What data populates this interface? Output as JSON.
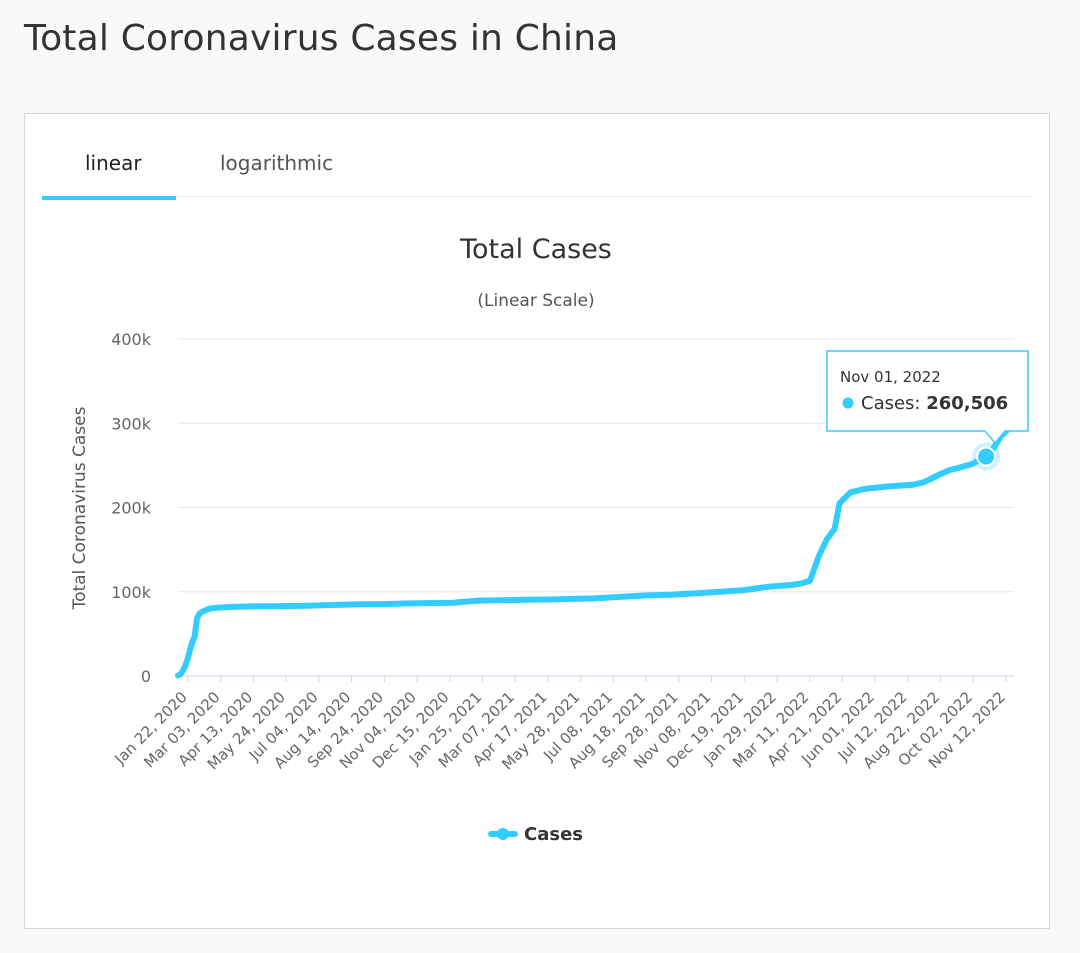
{
  "page": {
    "title": "Total Coronavirus Cases in China"
  },
  "tabs": [
    {
      "label": "linear",
      "active": true
    },
    {
      "label": "logarithmic",
      "active": false
    }
  ],
  "chart_data": {
    "type": "line",
    "title": "Total Cases",
    "subtitle": "(Linear Scale)",
    "ylabel": "Total Coronavirus Cases",
    "xlabel": "",
    "ylim": [
      0,
      400000
    ],
    "yticks": [
      0,
      100000,
      200000,
      300000,
      400000
    ],
    "ytick_labels": [
      "0",
      "100k",
      "200k",
      "300k",
      "400k"
    ],
    "xlim": [
      "2020-01-22",
      "2022-12-06"
    ],
    "xtick_labels": [
      "Jan 22, 2020",
      "Mar 03, 2020",
      "Apr 13, 2020",
      "May 24, 2020",
      "Jul 04, 2020",
      "Aug 14, 2020",
      "Sep 24, 2020",
      "Nov 04, 2020",
      "Dec 15, 2020",
      "Jan 25, 2021",
      "Mar 07, 2021",
      "Apr 17, 2021",
      "May 28, 2021",
      "Jul 08, 2021",
      "Aug 18, 2021",
      "Sep 28, 2021",
      "Nov 08, 2021",
      "Dec 19, 2021",
      "Jan 29, 2022",
      "Mar 11, 2022",
      "Apr 21, 2022",
      "Jun 01, 2022",
      "Jul 12, 2022",
      "Aug 22, 2022",
      "Oct 02, 2022",
      "Nov 12, 2022"
    ],
    "grid": true,
    "legend": "bottom-center",
    "color": "#33ccff",
    "series": [
      {
        "name": "Cases",
        "x": [
          "2020-01-22",
          "2020-01-25",
          "2020-01-28",
          "2020-01-31",
          "2020-02-03",
          "2020-02-06",
          "2020-02-09",
          "2020-02-12",
          "2020-02-15",
          "2020-02-18",
          "2020-02-21",
          "2020-02-25",
          "2020-03-01",
          "2020-03-10",
          "2020-04-01",
          "2020-05-01",
          "2020-06-01",
          "2020-07-01",
          "2020-08-01",
          "2020-09-01",
          "2020-10-01",
          "2020-11-01",
          "2020-12-01",
          "2021-01-01",
          "2021-02-01",
          "2021-03-01",
          "2021-04-01",
          "2021-05-01",
          "2021-06-01",
          "2021-07-01",
          "2021-08-01",
          "2021-09-01",
          "2021-10-01",
          "2021-11-01",
          "2021-12-01",
          "2022-01-01",
          "2022-02-01",
          "2022-03-01",
          "2022-03-15",
          "2022-03-25",
          "2022-04-05",
          "2022-04-15",
          "2022-04-25",
          "2022-05-01",
          "2022-05-15",
          "2022-06-01",
          "2022-07-01",
          "2022-08-01",
          "2022-08-15",
          "2022-09-01",
          "2022-09-15",
          "2022-10-01",
          "2022-10-15",
          "2022-11-01",
          "2022-11-10",
          "2022-11-20",
          "2022-12-01",
          "2022-12-06"
        ],
        "values": [
          550,
          2000,
          6000,
          12000,
          20000,
          31000,
          40000,
          47000,
          69000,
          74000,
          76000,
          77700,
          80000,
          81000,
          82000,
          82900,
          83000,
          83400,
          84300,
          85000,
          85400,
          86000,
          86500,
          87000,
          89500,
          90000,
          90400,
          90800,
          91500,
          92400,
          94000,
          95700,
          96500,
          98000,
          99800,
          102000,
          106000,
          108000,
          110000,
          113000,
          142000,
          162000,
          175000,
          205000,
          218000,
          222000,
          225000,
          227000,
          230000,
          238000,
          244000,
          248000,
          252000,
          260506,
          270000,
          285000,
          295000,
          298000
        ]
      }
    ],
    "tooltip": {
      "date": "Nov 01, 2022",
      "series": "Cases",
      "value": "260,506"
    }
  }
}
